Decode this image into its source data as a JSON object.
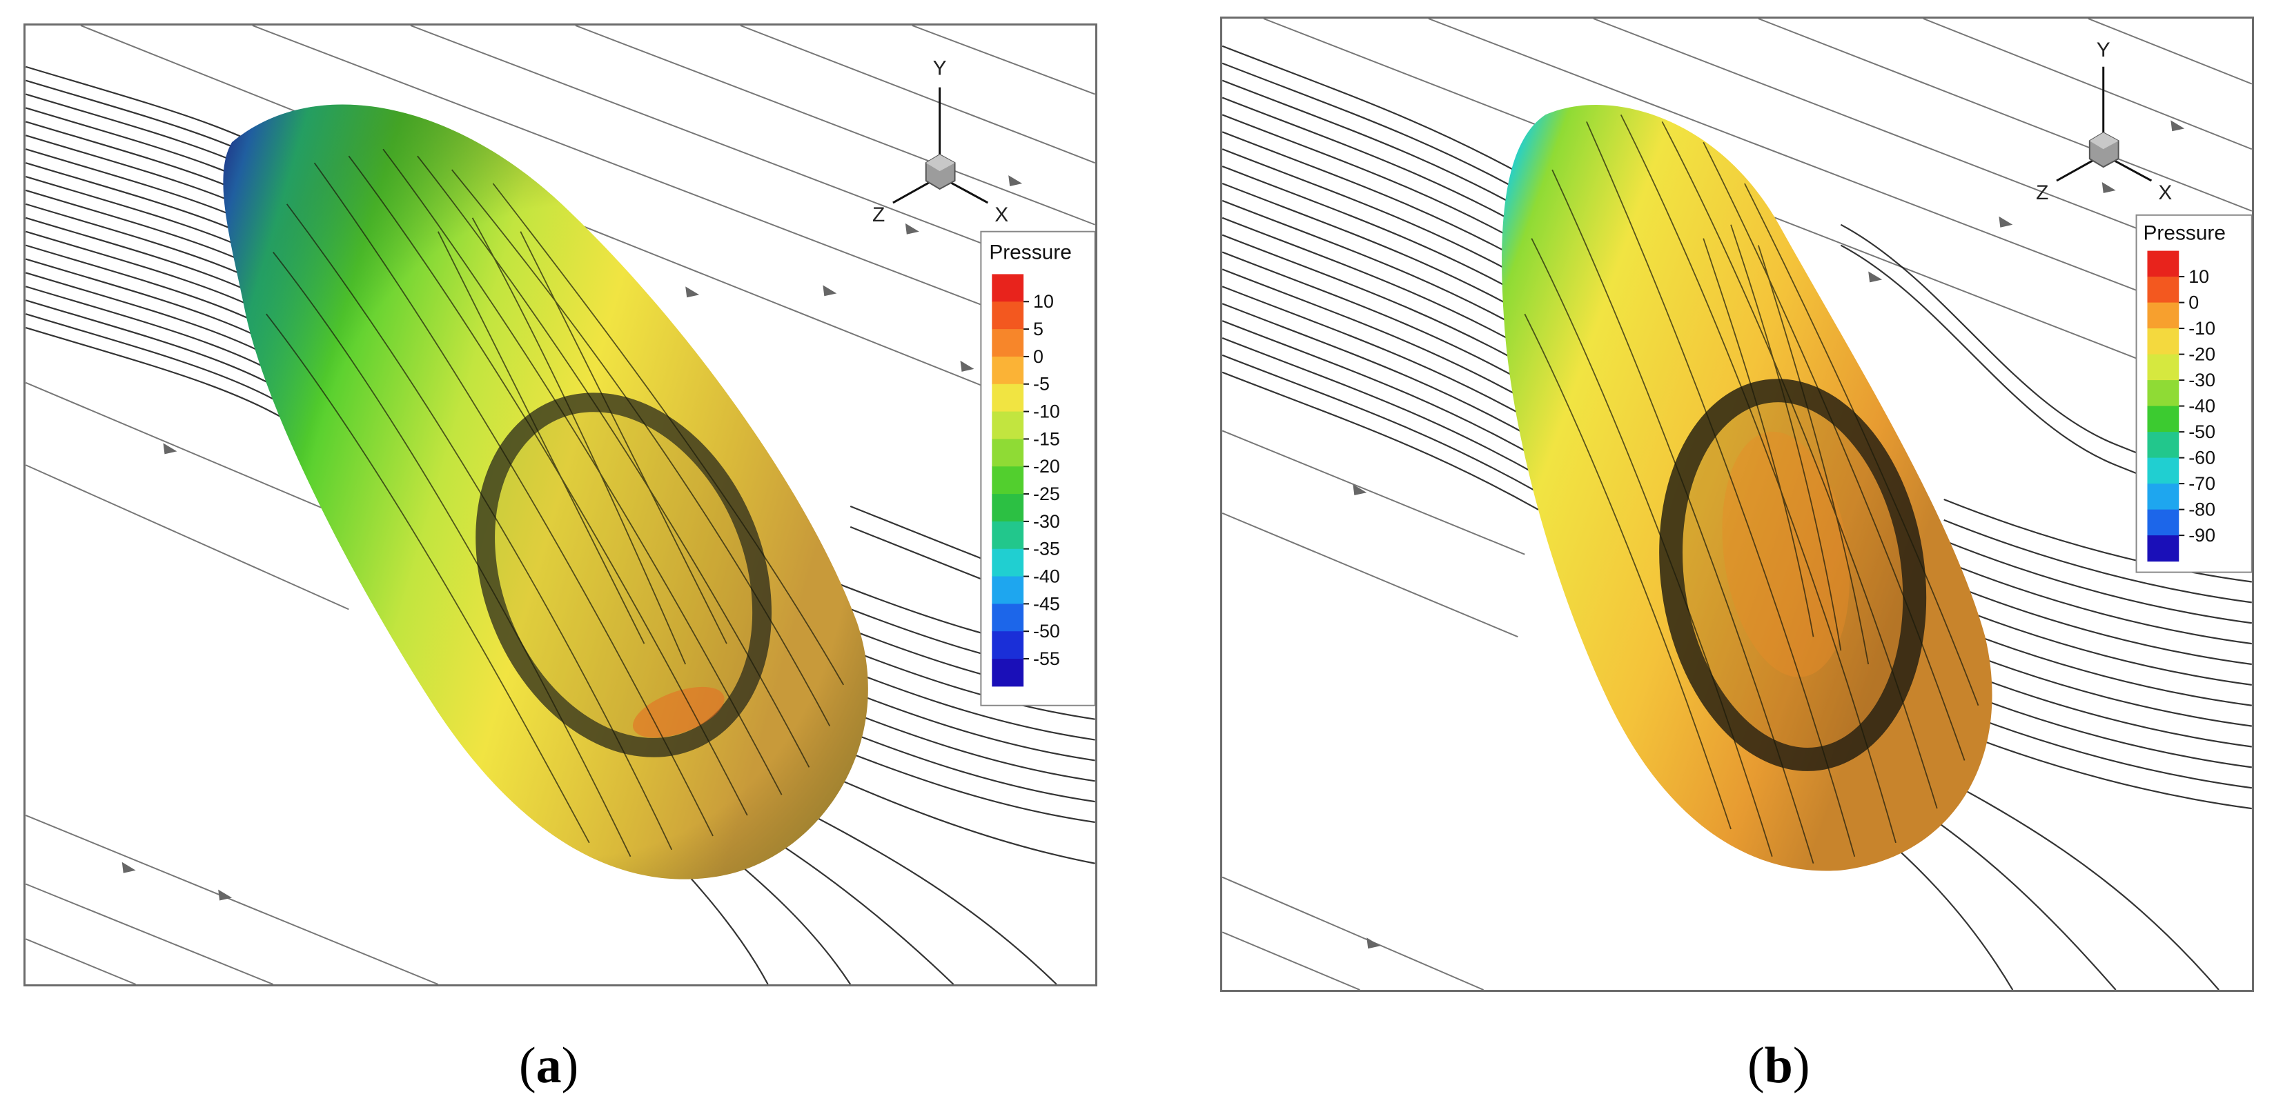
{
  "panels": [
    {
      "id": "a",
      "caption_open": "(",
      "caption_letter": "a",
      "caption_close": ")",
      "axes": {
        "y": "Y",
        "z": "Z",
        "x": "X"
      },
      "legend": {
        "title": "Pressure",
        "ticks": [
          "10",
          "5",
          "0",
          "-5",
          "-10",
          "-15",
          "-20",
          "-25",
          "-30",
          "-35",
          "-40",
          "-45",
          "-50",
          "-55"
        ],
        "colors": [
          "#e8231c",
          "#f3581f",
          "#f7862a",
          "#fbb336",
          "#f1e442",
          "#c2e53f",
          "#8fdb35",
          "#52cf2e",
          "#2cc043",
          "#22c78c",
          "#20cfd1",
          "#1ea6ef",
          "#1c66ea",
          "#1a2fd8",
          "#1a0fb8"
        ]
      }
    },
    {
      "id": "b",
      "caption_open": "(",
      "caption_letter": "b",
      "caption_close": ")",
      "axes": {
        "y": "Y",
        "z": "Z",
        "x": "X"
      },
      "legend": {
        "title": "Pressure",
        "ticks": [
          "10",
          "0",
          "-10",
          "-20",
          "-30",
          "-40",
          "-50",
          "-60",
          "-70",
          "-80",
          "-90"
        ],
        "colors": [
          "#e8231c",
          "#f3581f",
          "#f7a02e",
          "#f4d93e",
          "#d6e83f",
          "#8fdb35",
          "#3ccb30",
          "#22c78c",
          "#20cfd1",
          "#1ea6ef",
          "#1c66ea",
          "#1a0fb8"
        ]
      }
    }
  ]
}
